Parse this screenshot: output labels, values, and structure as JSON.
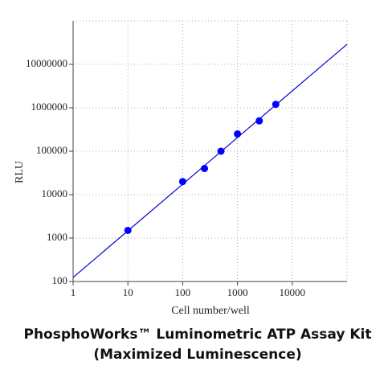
{
  "chart_data": {
    "type": "scatter",
    "title": [
      "PhosphoWorks™ Luminometric ATP Assay Kit",
      "(Maximized Luminescence)"
    ],
    "x_label": "Cell number/well",
    "y_label": "RLU",
    "x_scale": "log",
    "y_scale": "log",
    "xlim": [
      1,
      100000
    ],
    "ylim": [
      100,
      100000000
    ],
    "xticks": [
      1,
      10,
      100,
      1000,
      10000
    ],
    "yticks": [
      100,
      1000,
      10000,
      100000,
      1000000,
      10000000
    ],
    "grid": true,
    "series": [
      {
        "x": [
          10,
          100,
          250,
          500,
          1000,
          2500,
          5000
        ],
        "values": [
          1500,
          20000,
          40000,
          100000,
          250000,
          500000,
          1200000
        ],
        "color": "#0000ff"
      }
    ],
    "fit_line": {
      "x": [
        1,
        100000
      ],
      "values": [
        124,
        29000000
      ],
      "color": "#0000cc"
    }
  }
}
